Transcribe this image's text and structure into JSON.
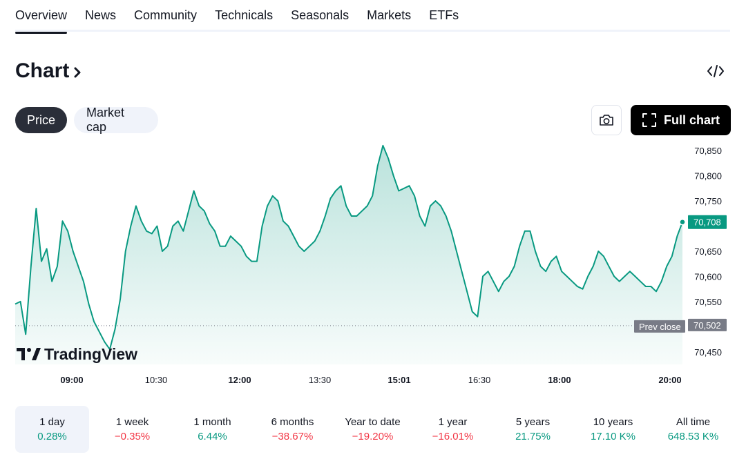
{
  "tabs": [
    {
      "label": "Overview",
      "active": true
    },
    {
      "label": "News"
    },
    {
      "label": "Community"
    },
    {
      "label": "Technicals"
    },
    {
      "label": "Seasonals"
    },
    {
      "label": "Markets"
    },
    {
      "label": "ETFs"
    }
  ],
  "section": {
    "title": "Chart"
  },
  "toggles": {
    "price": "Price",
    "market_cap": "Market cap"
  },
  "buttons": {
    "full_chart": "Full chart"
  },
  "watermark": "TradingView",
  "colors": {
    "line": "#089981",
    "fill_top": "#c7ebe4",
    "prev_close_bg": "#787b86",
    "negative": "#f23645"
  },
  "chart_data": {
    "type": "area",
    "x_ticks": [
      {
        "label": "09:00",
        "bold": true
      },
      {
        "label": "10:30",
        "bold": false
      },
      {
        "label": "12:00",
        "bold": true
      },
      {
        "label": "13:30",
        "bold": false
      },
      {
        "label": "15:01",
        "bold": true
      },
      {
        "label": "16:30",
        "bold": false
      },
      {
        "label": "18:00",
        "bold": true
      },
      {
        "label": "20:00",
        "bold": true
      }
    ],
    "y_ticks": [
      "70,850",
      "70,800",
      "70,750",
      "70,650",
      "70,600",
      "70,550",
      "70,450"
    ],
    "y_tick_values": [
      70850,
      70800,
      70750,
      70650,
      70600,
      70550,
      70450
    ],
    "ylim": [
      70425,
      70875
    ],
    "current_value": 70708,
    "current_label": "70,708",
    "prev_close": 70502,
    "prev_close_label": "70,502",
    "prev_close_text": "Prev close",
    "values": [
      70545,
      70550,
      70485,
      70620,
      70735,
      70630,
      70655,
      70590,
      70620,
      70710,
      70690,
      70650,
      70620,
      70590,
      70545,
      70510,
      70490,
      70470,
      70455,
      70495,
      70555,
      70650,
      70700,
      70740,
      70710,
      70690,
      70685,
      70700,
      70650,
      70660,
      70700,
      70710,
      70690,
      70730,
      70770,
      70740,
      70730,
      70705,
      70690,
      70660,
      70660,
      70680,
      70670,
      70660,
      70640,
      70630,
      70630,
      70700,
      70740,
      70760,
      70750,
      70710,
      70700,
      70680,
      70660,
      70650,
      70660,
      70670,
      70690,
      70720,
      70755,
      70770,
      70780,
      70740,
      70720,
      70720,
      70730,
      70740,
      70760,
      70820,
      70860,
      70835,
      70800,
      70770,
      70775,
      70780,
      70760,
      70720,
      70700,
      70740,
      70750,
      70740,
      70720,
      70690,
      70650,
      70610,
      70570,
      70530,
      70520,
      70600,
      70610,
      70590,
      70570,
      70590,
      70600,
      70620,
      70660,
      70690,
      70690,
      70650,
      70620,
      70610,
      70630,
      70640,
      70610,
      70600,
      70590,
      70580,
      70575,
      70600,
      70620,
      70650,
      70640,
      70620,
      70600,
      70590,
      70600,
      70610,
      70600,
      70590,
      70580,
      70580,
      70570,
      70590,
      70620,
      70640,
      70680,
      70708
    ]
  },
  "periods": [
    {
      "label": "1 day",
      "value": "0.28%",
      "sign": "pos",
      "active": true
    },
    {
      "label": "1 week",
      "value": "−0.35%",
      "sign": "neg"
    },
    {
      "label": "1 month",
      "value": "6.44%",
      "sign": "pos"
    },
    {
      "label": "6 months",
      "value": "−38.67%",
      "sign": "neg"
    },
    {
      "label": "Year to date",
      "value": "−19.20%",
      "sign": "neg"
    },
    {
      "label": "1 year",
      "value": "−16.01%",
      "sign": "neg"
    },
    {
      "label": "5 years",
      "value": "21.75%",
      "sign": "pos"
    },
    {
      "label": "10 years",
      "value": "17.10 K%",
      "sign": "pos"
    },
    {
      "label": "All time",
      "value": "648.53 K%",
      "sign": "pos"
    }
  ]
}
